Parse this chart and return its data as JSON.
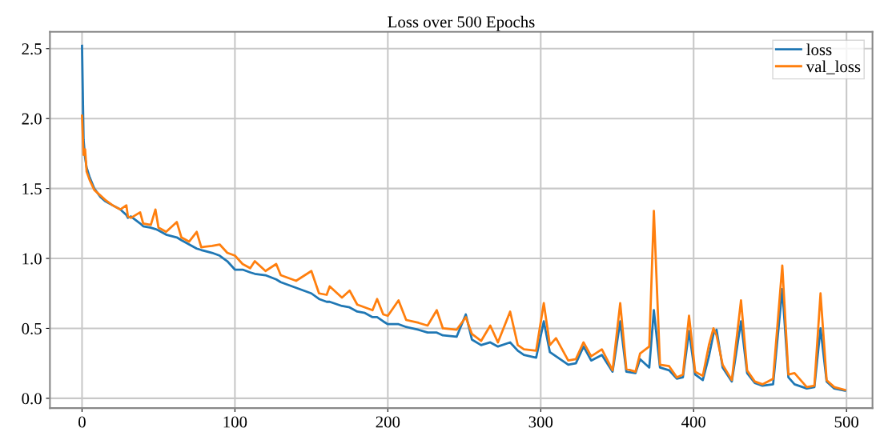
{
  "chart_data": {
    "type": "line",
    "title": "Loss over 500 Epochs",
    "x": [
      0,
      1,
      2,
      3,
      5,
      8,
      12,
      15,
      20,
      25,
      29,
      30,
      32,
      38,
      40,
      45,
      48,
      50,
      55,
      62,
      65,
      70,
      75,
      78,
      85,
      90,
      95,
      100,
      105,
      110,
      113,
      120,
      127,
      130,
      140,
      150,
      155,
      160,
      162,
      170,
      175,
      180,
      185,
      190,
      193,
      197,
      200,
      207,
      212,
      220,
      226,
      232,
      236,
      245,
      251,
      255,
      261,
      267,
      272,
      280,
      285,
      289,
      297,
      302,
      306,
      310,
      318,
      323,
      328,
      333,
      340,
      347,
      352,
      356,
      362,
      365,
      371,
      374,
      378,
      384,
      389,
      393,
      397,
      401,
      406,
      410,
      413,
      415,
      419,
      425,
      431,
      435,
      440,
      445,
      452,
      458,
      462,
      466,
      474,
      479,
      483,
      487,
      492,
      499
    ],
    "series": [
      {
        "name": "loss",
        "color": "#1f77b4",
        "values": [
          2.52,
          1.85,
          1.72,
          1.65,
          1.58,
          1.5,
          1.44,
          1.41,
          1.38,
          1.35,
          1.31,
          1.29,
          1.3,
          1.25,
          1.23,
          1.22,
          1.21,
          1.2,
          1.17,
          1.15,
          1.13,
          1.1,
          1.07,
          1.06,
          1.04,
          1.02,
          0.98,
          0.92,
          0.92,
          0.9,
          0.89,
          0.88,
          0.85,
          0.83,
          0.79,
          0.75,
          0.71,
          0.69,
          0.69,
          0.66,
          0.65,
          0.62,
          0.61,
          0.58,
          0.58,
          0.55,
          0.53,
          0.53,
          0.51,
          0.49,
          0.47,
          0.47,
          0.45,
          0.44,
          0.6,
          0.42,
          0.38,
          0.4,
          0.37,
          0.4,
          0.34,
          0.31,
          0.29,
          0.55,
          0.33,
          0.3,
          0.24,
          0.25,
          0.37,
          0.27,
          0.31,
          0.19,
          0.55,
          0.19,
          0.18,
          0.28,
          0.22,
          0.63,
          0.22,
          0.2,
          0.14,
          0.15,
          0.48,
          0.17,
          0.13,
          0.3,
          0.46,
          0.49,
          0.22,
          0.12,
          0.55,
          0.18,
          0.11,
          0.09,
          0.1,
          0.78,
          0.15,
          0.1,
          0.07,
          0.08,
          0.5,
          0.12,
          0.07,
          0.055
        ]
      },
      {
        "name": "val_loss",
        "color": "#ff7f0e",
        "values": [
          2.02,
          1.74,
          1.78,
          1.62,
          1.56,
          1.49,
          1.45,
          1.42,
          1.38,
          1.35,
          1.38,
          1.3,
          1.29,
          1.33,
          1.25,
          1.24,
          1.35,
          1.22,
          1.19,
          1.26,
          1.15,
          1.12,
          1.19,
          1.08,
          1.09,
          1.1,
          1.04,
          1.02,
          0.96,
          0.93,
          0.98,
          0.91,
          0.96,
          0.88,
          0.84,
          0.91,
          0.75,
          0.74,
          0.8,
          0.72,
          0.77,
          0.67,
          0.65,
          0.63,
          0.71,
          0.6,
          0.59,
          0.7,
          0.56,
          0.54,
          0.52,
          0.63,
          0.5,
          0.49,
          0.58,
          0.46,
          0.41,
          0.52,
          0.4,
          0.62,
          0.38,
          0.35,
          0.34,
          0.68,
          0.38,
          0.43,
          0.27,
          0.28,
          0.4,
          0.3,
          0.35,
          0.2,
          0.68,
          0.21,
          0.19,
          0.32,
          0.37,
          1.34,
          0.24,
          0.23,
          0.15,
          0.17,
          0.59,
          0.19,
          0.16,
          0.38,
          0.5,
          0.45,
          0.24,
          0.13,
          0.7,
          0.2,
          0.12,
          0.1,
          0.14,
          0.95,
          0.17,
          0.18,
          0.08,
          0.09,
          0.75,
          0.13,
          0.08,
          0.06
        ]
      }
    ],
    "xlim": [
      -21,
      517
    ],
    "ylim": [
      -0.07,
      2.62
    ],
    "xticks": [
      0,
      100,
      200,
      300,
      400,
      500
    ],
    "yticks": [
      {
        "value": 0,
        "label": "0.0"
      },
      {
        "value": 0.5,
        "label": "0.5"
      },
      {
        "value": 1,
        "label": "1.0"
      },
      {
        "value": 1.5,
        "label": "1.5"
      },
      {
        "value": 2,
        "label": "2.0"
      },
      {
        "value": 2.5,
        "label": "2.5"
      }
    ],
    "grid": true,
    "legend": "top right",
    "marker": "none",
    "line_style": "solid"
  }
}
